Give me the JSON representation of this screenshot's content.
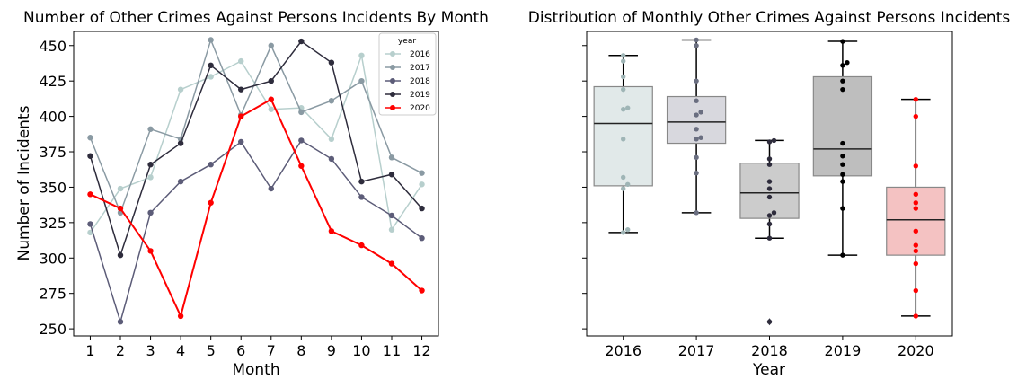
{
  "chart_data": [
    {
      "type": "line",
      "title": "Number of Other Crimes Against Persons Incidents By Month",
      "xlabel": "Month",
      "ylabel": "Number of Incidents",
      "x": [
        1,
        2,
        3,
        4,
        5,
        6,
        7,
        8,
        9,
        10,
        11,
        12
      ],
      "xticks": [
        "1",
        "2",
        "3",
        "4",
        "5",
        "6",
        "7",
        "8",
        "9",
        "10",
        "11",
        "12"
      ],
      "ylim": [
        245,
        460
      ],
      "yticks": [
        250,
        275,
        300,
        325,
        350,
        375,
        400,
        425,
        450
      ],
      "grid": false,
      "legend": {
        "title": "year",
        "placement": "top-right"
      },
      "series": [
        {
          "name": "2016",
          "color": "#b7cfcd",
          "values": [
            318,
            349,
            357,
            419,
            428,
            439,
            405,
            406,
            384,
            443,
            320,
            352
          ]
        },
        {
          "name": "2017",
          "color": "#8a9aa3",
          "values": [
            385,
            332,
            391,
            384,
            454,
            401,
            450,
            403,
            411,
            425,
            371,
            360
          ]
        },
        {
          "name": "2018",
          "color": "#5c5c78",
          "values": [
            324,
            255,
            332,
            354,
            366,
            382,
            349,
            383,
            370,
            343,
            330,
            314
          ]
        },
        {
          "name": "2019",
          "color": "#2e2c3c",
          "values": [
            372,
            302,
            366,
            381,
            436,
            419,
            425,
            453,
            438,
            354,
            359,
            335
          ]
        },
        {
          "name": "2020",
          "color": "#ff0000",
          "values": [
            345,
            335,
            305,
            259,
            339,
            400,
            412,
            365,
            319,
            309,
            296,
            277
          ]
        }
      ]
    },
    {
      "type": "box",
      "title": "Distribution of Monthly Other Crimes Against Persons Incidents",
      "xlabel": "Year",
      "ylabel": "",
      "ylim": [
        245,
        460
      ],
      "categories": [
        "2016",
        "2017",
        "2018",
        "2019",
        "2020"
      ],
      "boxes": [
        {
          "year": "2016",
          "min": 318,
          "q1": 351,
          "median": 395,
          "q3": 421,
          "max": 443,
          "outliers": [],
          "fill": "#e1e9e9",
          "point_color": "#9fb5b6",
          "points": [
            318,
            320,
            349,
            352,
            357,
            384,
            405,
            406,
            419,
            428,
            439,
            443
          ]
        },
        {
          "year": "2017",
          "min": 332,
          "q1": 381,
          "median": 396,
          "q3": 414,
          "max": 454,
          "outliers": [],
          "fill": "#d8d8de",
          "point_color": "#6a6e80",
          "points": [
            332,
            360,
            371,
            384,
            385,
            391,
            401,
            403,
            411,
            425,
            450,
            454
          ]
        },
        {
          "year": "2018",
          "min": 314,
          "q1": 328,
          "median": 346,
          "q3": 367,
          "max": 383,
          "outliers": [
            255
          ],
          "fill": "#cccccc",
          "point_color": "#2e2c3c",
          "points": [
            255,
            314,
            324,
            330,
            332,
            343,
            349,
            354,
            366,
            370,
            382,
            383
          ]
        },
        {
          "year": "2019",
          "min": 302,
          "q1": 358,
          "median": 377,
          "q3": 428,
          "max": 453,
          "outliers": [],
          "fill": "#bebebe",
          "point_color": "#000000",
          "points": [
            302,
            335,
            354,
            359,
            366,
            372,
            381,
            419,
            425,
            436,
            438,
            453
          ]
        },
        {
          "year": "2020",
          "min": 259,
          "q1": 302,
          "median": 327,
          "q3": 350,
          "max": 412,
          "outliers": [],
          "fill": "#f4c2c2",
          "point_color": "#ff0000",
          "points": [
            259,
            277,
            296,
            305,
            309,
            319,
            335,
            339,
            345,
            365,
            400,
            412
          ]
        }
      ]
    }
  ]
}
